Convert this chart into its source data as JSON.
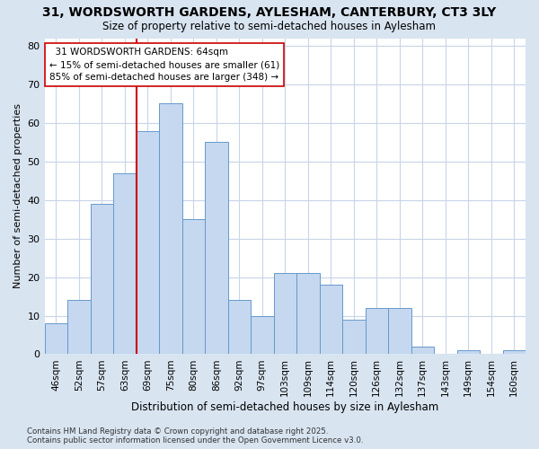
{
  "title1": "31, WORDSWORTH GARDENS, AYLESHAM, CANTERBURY, CT3 3LY",
  "title2": "Size of property relative to semi-detached houses in Aylesham",
  "xlabel": "Distribution of semi-detached houses by size in Aylesham",
  "ylabel": "Number of semi-detached properties",
  "categories": [
    "46sqm",
    "52sqm",
    "57sqm",
    "63sqm",
    "69sqm",
    "75sqm",
    "80sqm",
    "86sqm",
    "92sqm",
    "97sqm",
    "103sqm",
    "109sqm",
    "114sqm",
    "120sqm",
    "126sqm",
    "132sqm",
    "137sqm",
    "143sqm",
    "149sqm",
    "154sqm",
    "160sqm"
  ],
  "values": [
    8,
    14,
    39,
    47,
    58,
    65,
    35,
    55,
    14,
    10,
    21,
    21,
    18,
    9,
    12,
    12,
    2,
    0,
    1,
    0,
    1
  ],
  "bar_color": "#c5d8f0",
  "bar_edge_color": "#6699cc",
  "property_label": "31 WORDSWORTH GARDENS: 64sqm",
  "pct_smaller": 15,
  "n_smaller": 61,
  "pct_larger": 85,
  "n_larger": 348,
  "vline_color": "#cc0000",
  "vline_x_index": 3.5,
  "annotation_box_color": "#ffffff",
  "annotation_box_edge": "#cc0000",
  "ylim": [
    0,
    82
  ],
  "yticks": [
    0,
    10,
    20,
    30,
    40,
    50,
    60,
    70,
    80
  ],
  "footer": "Contains HM Land Registry data © Crown copyright and database right 2025.\nContains public sector information licensed under the Open Government Licence v3.0.",
  "fig_bg_color": "#d8e4f0",
  "plot_bg_color": "#ffffff",
  "grid_color": "#c8d4e8"
}
